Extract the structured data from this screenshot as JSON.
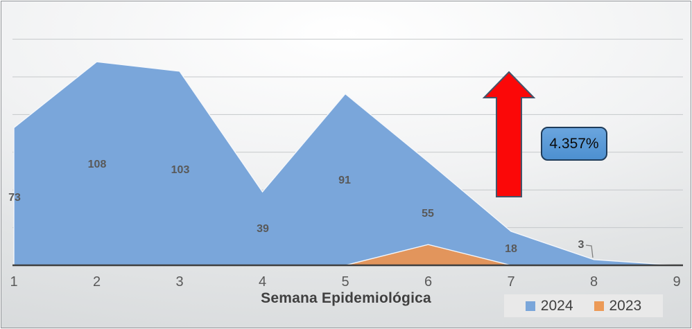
{
  "chart_data": {
    "type": "area",
    "title": "",
    "xlabel": "Semana Epidemiológica",
    "ylabel": "",
    "categories": [
      "1",
      "2",
      "3",
      "4",
      "5",
      "6",
      "7",
      "8",
      "9"
    ],
    "series": [
      {
        "name": "2024",
        "color": "#7aa6da",
        "values": [
          73,
          108,
          103,
          39,
          91,
          55,
          18,
          3,
          0
        ]
      },
      {
        "name": "2023",
        "color": "#e2955c",
        "values": [
          0,
          0,
          0,
          0,
          0,
          11,
          0,
          0,
          0
        ]
      }
    ],
    "data_labels": [
      "73",
      "108",
      "103",
      "39",
      "91",
      "55",
      "18",
      "3"
    ],
    "ylim": [
      0,
      133
    ],
    "gridline_step": 20,
    "grid": true,
    "legend_position": "bottom-right"
  },
  "legend": {
    "items": [
      {
        "label": "2024",
        "color": "#7aa6da"
      },
      {
        "label": "2023",
        "color": "#ec9a57"
      }
    ]
  },
  "annotations": {
    "percent_label": "4.357%",
    "arrow_icon": "up-arrow",
    "arrow_color": "#fb0808",
    "arrow_border": "#44546a",
    "badge_color": "#5599d6"
  },
  "colors": {
    "axis": "#3f3f3f",
    "gridline": "#c5c8ca",
    "tick_label": "#595959",
    "data_label": "#595959",
    "callout_line": "#7f7f7f"
  }
}
